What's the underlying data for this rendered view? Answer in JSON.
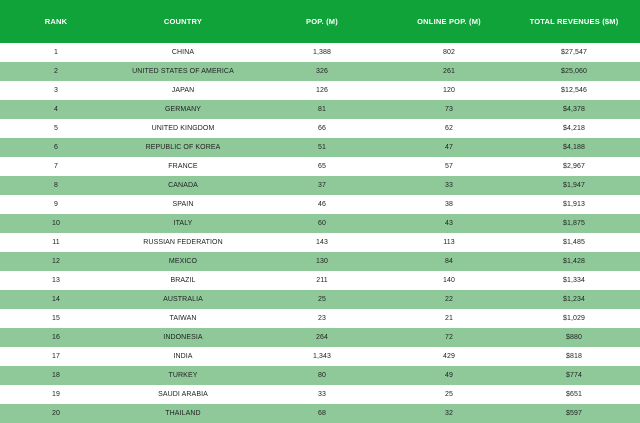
{
  "table": {
    "headers": [
      "RANK",
      "COUNTRY",
      "POP. (M)",
      "ONLINE POP. (M)",
      "TOTAL REVENUES ($M)"
    ],
    "rows": [
      [
        "1",
        "CHINA",
        "1,388",
        "802",
        "$27,547"
      ],
      [
        "2",
        "UNITED STATES OF AMERICA",
        "326",
        "261",
        "$25,060"
      ],
      [
        "3",
        "JAPAN",
        "126",
        "120",
        "$12,546"
      ],
      [
        "4",
        "GERMANY",
        "81",
        "73",
        "$4,378"
      ],
      [
        "5",
        "UNITED KINGDOM",
        "66",
        "62",
        "$4,218"
      ],
      [
        "6",
        "REPUBLIC OF KOREA",
        "51",
        "47",
        "$4,188"
      ],
      [
        "7",
        "FRANCE",
        "65",
        "57",
        "$2,967"
      ],
      [
        "8",
        "CANADA",
        "37",
        "33",
        "$1,947"
      ],
      [
        "9",
        "SPAIN",
        "46",
        "38",
        "$1,913"
      ],
      [
        "10",
        "ITALY",
        "60",
        "43",
        "$1,875"
      ],
      [
        "11",
        "RUSSIAN FEDERATION",
        "143",
        "113",
        "$1,485"
      ],
      [
        "12",
        "MEXICO",
        "130",
        "84",
        "$1,428"
      ],
      [
        "13",
        "BRAZIL",
        "211",
        "140",
        "$1,334"
      ],
      [
        "14",
        "AUSTRALIA",
        "25",
        "22",
        "$1,234"
      ],
      [
        "15",
        "TAIWAN",
        "23",
        "21",
        "$1,029"
      ],
      [
        "16",
        "INDONESIA",
        "264",
        "72",
        "$880"
      ],
      [
        "17",
        "INDIA",
        "1,343",
        "429",
        "$818"
      ],
      [
        "18",
        "TURKEY",
        "80",
        "49",
        "$774"
      ],
      [
        "19",
        "SAUDI ARABIA",
        "33",
        "25",
        "$651"
      ],
      [
        "20",
        "THAILAND",
        "68",
        "32",
        "$597"
      ]
    ]
  },
  "colors": {
    "header_bg": "#0fa33a",
    "stripe_bg": "#8fc99a",
    "row_bg": "#ffffff"
  }
}
